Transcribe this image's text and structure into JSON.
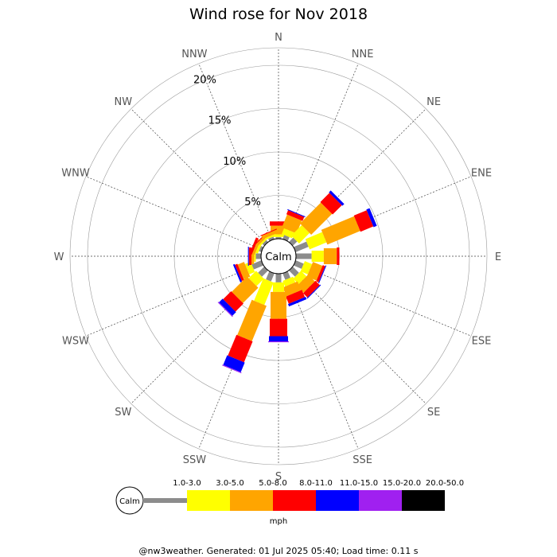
{
  "chart_data": {
    "type": "wind-rose",
    "title": "Wind rose for Nov 2018",
    "directions": [
      "N",
      "NNE",
      "NE",
      "ENE",
      "E",
      "ESE",
      "SE",
      "SSE",
      "S",
      "SSW",
      "SW",
      "WSW",
      "W",
      "WNW",
      "NW",
      "NNW"
    ],
    "rings": [
      5,
      10,
      15,
      20
    ],
    "ring_labels": [
      "5%",
      "10%",
      "15%",
      "20%"
    ],
    "calm_label": "Calm",
    "units": "mph",
    "bins": [
      {
        "label": "1.0-3.0",
        "color": "#8c8c8c"
      },
      {
        "label": "3.0-5.0",
        "color": "#ffff00"
      },
      {
        "label": "5.0-8.0",
        "color": "#ffa500"
      },
      {
        "label": "8.0-11.0",
        "color": "#ff0000"
      },
      {
        "label": "11.0-15.0",
        "color": "#0000ff"
      },
      {
        "label": "15.0-20.0",
        "color": "#a020f0"
      },
      {
        "label": "20.0-50.0",
        "color": "#000000"
      }
    ],
    "series": [
      {
        "direction": "N",
        "values": [
          0.2,
          0.3,
          1.0,
          0.5,
          0.0,
          0.0,
          0.0
        ]
      },
      {
        "direction": "NNE",
        "values": [
          0.5,
          0.7,
          1.6,
          0.5,
          0.1,
          0.0,
          0.0
        ]
      },
      {
        "direction": "NE",
        "values": [
          0.7,
          1.7,
          3.4,
          1.5,
          0.3,
          0.0,
          0.0
        ]
      },
      {
        "direction": "ENE",
        "values": [
          1.6,
          2.1,
          4.1,
          1.6,
          0.4,
          0.0,
          0.0
        ]
      },
      {
        "direction": "E",
        "values": [
          1.8,
          1.4,
          1.5,
          0.3,
          0.0,
          0.0,
          0.0
        ]
      },
      {
        "direction": "ESE",
        "values": [
          1.0,
          0.9,
          1.2,
          0.3,
          0.1,
          0.0,
          0.0
        ]
      },
      {
        "direction": "SE",
        "values": [
          1.0,
          0.9,
          1.1,
          0.7,
          0.1,
          0.0,
          0.0
        ]
      },
      {
        "direction": "SSE",
        "values": [
          0.8,
          0.7,
          1.1,
          0.9,
          0.3,
          0.0,
          0.0
        ]
      },
      {
        "direction": "S",
        "values": [
          1.0,
          1.1,
          3.1,
          2.0,
          0.6,
          0.1,
          0.0
        ]
      },
      {
        "direction": "SSW",
        "values": [
          1.0,
          2.8,
          4.4,
          2.6,
          1.2,
          0.1,
          0.0
        ]
      },
      {
        "direction": "SW",
        "values": [
          1.0,
          1.2,
          2.5,
          1.3,
          0.6,
          0.1,
          0.0
        ]
      },
      {
        "direction": "WSW",
        "values": [
          1.2,
          0.7,
          0.8,
          0.3,
          0.2,
          0.0,
          0.0
        ]
      },
      {
        "direction": "W",
        "values": [
          0.6,
          0.2,
          0.3,
          0.3,
          0.1,
          0.0,
          0.0
        ]
      },
      {
        "direction": "WNW",
        "values": [
          0.3,
          0.3,
          0.3,
          0.3,
          0.0,
          0.0,
          0.0
        ]
      },
      {
        "direction": "NW",
        "values": [
          0.3,
          0.2,
          0.3,
          0.1,
          0.0,
          0.0,
          0.0
        ]
      },
      {
        "direction": "NNW",
        "values": [
          0.3,
          0.2,
          0.4,
          0.1,
          0.0,
          0.0,
          0.0
        ]
      }
    ]
  },
  "footer": "@nw3weather. Generated: 01 Jul 2025 05:40; Load time: 0.11 s"
}
